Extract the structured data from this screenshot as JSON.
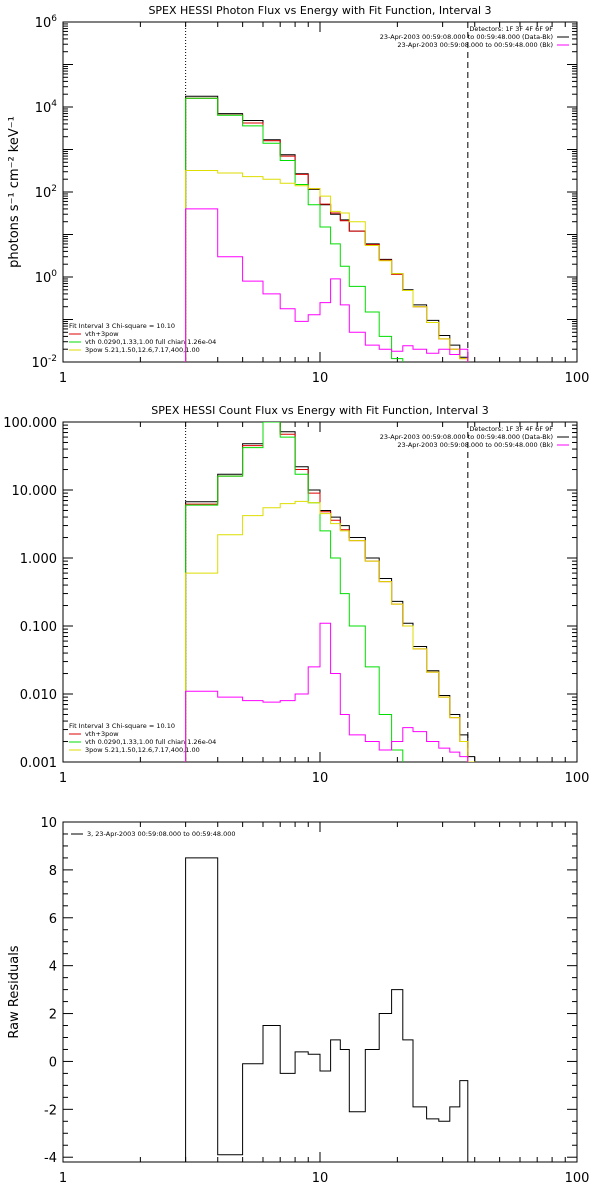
{
  "chart_data": [
    {
      "type": "line",
      "title": "SPEX HESSI Photon Flux vs Energy with Fit Function, Interval 3",
      "xlabel": "",
      "ylabel": "photons s⁻¹ cm⁻² keV⁻¹",
      "xscale": "log",
      "yscale": "log",
      "xlim": [
        1,
        100
      ],
      "ylim": [
        0.01,
        1000000
      ],
      "x_ticks": [
        {
          "v": 1,
          "label": "1"
        },
        {
          "v": 10,
          "label": "10"
        },
        {
          "v": 100,
          "label": "100"
        }
      ],
      "y_ticks": [
        {
          "v": 0.01,
          "base": "10",
          "exp": "-2"
        },
        {
          "v": 1,
          "base": "10",
          "exp": "0"
        },
        {
          "v": 100,
          "base": "10",
          "exp": "2"
        },
        {
          "v": 10000,
          "base": "10",
          "exp": "4"
        },
        {
          "v": 1000000,
          "base": "10",
          "exp": "6"
        }
      ],
      "vlines": [
        {
          "x": 3.0,
          "style": "dotted"
        },
        {
          "x": 37.6,
          "style": "dashed"
        }
      ],
      "info_lines": [
        "Detectors: 1F 3F 4F 6F 9F",
        "23-Apr-2003 00:59:08.000 to 00:59:48.000 (Data-Bk)",
        "23-Apr-2003 00:59:08.000 to 00:59:48.000 (Bk)"
      ],
      "info_swatches": [
        "",
        "#000000",
        "#ff00ff"
      ],
      "fit_lines": [
        "Fit Interval 3   Chi-square = 10.10",
        "vth+3pow",
        "vth 0.0290,1.33,1.00  full chian 1.26e-04",
        "3pow 5.21,1.50,12.6,7.17,400,1.00"
      ],
      "fit_swatches": [
        "",
        "#dd0000",
        "#00dd00",
        "#dddd00"
      ],
      "edges": [
        3.0,
        4.0,
        5.0,
        6.0,
        7.0,
        8.0,
        9.0,
        10.0,
        11.0,
        12.0,
        13.0,
        15.0,
        17.0,
        19.0,
        21.0,
        23.0,
        26.0,
        29.0,
        32.0,
        35.0,
        37.6,
        40.0,
        43.0,
        46.0
      ],
      "series": [
        {
          "color": "#000000",
          "values": [
            18000,
            7000,
            4800,
            1700,
            750,
            270,
            115,
            50,
            30,
            22,
            12,
            6.0,
            2.6,
            1.2,
            0.5,
            0.22,
            0.095,
            0.042,
            0.025,
            0.013,
            0.009,
            null,
            null
          ]
        },
        {
          "color": "#dd0000",
          "values": [
            16000,
            6500,
            4200,
            1600,
            700,
            260,
            120,
            52,
            32,
            21,
            12,
            5.8,
            2.5,
            1.15,
            0.48,
            0.2,
            0.085,
            0.035,
            0.02,
            0.012,
            0.008,
            0.0055,
            null
          ]
        },
        {
          "color": "#00dd00",
          "values": [
            16000,
            6400,
            3600,
            1400,
            550,
            150,
            50,
            15,
            6,
            1.8,
            0.6,
            0.15,
            0.04,
            0.012,
            null,
            null,
            null,
            null,
            null,
            null,
            null,
            null,
            null
          ]
        },
        {
          "color": "#dddd00",
          "values": [
            320,
            280,
            230,
            200,
            160,
            140,
            120,
            80,
            35,
            32,
            20,
            5.5,
            2.4,
            1.2,
            0.48,
            0.2,
            0.085,
            0.035,
            0.02,
            0.012,
            0.008,
            0.0055,
            null
          ]
        },
        {
          "color": "#ff00ff",
          "values": [
            40,
            3.0,
            0.8,
            0.4,
            0.18,
            0.09,
            0.13,
            0.25,
            0.9,
            0.22,
            0.05,
            0.025,
            0.02,
            0.018,
            0.024,
            0.02,
            0.016,
            0.02,
            0.015,
            0.02,
            null,
            null,
            null
          ]
        }
      ]
    },
    {
      "type": "line",
      "title": "SPEX HESSI Count Flux vs Energy with Fit Function, Interval 3",
      "xlabel": "",
      "ylabel": "",
      "xscale": "log",
      "yscale": "log",
      "xlim": [
        1,
        100
      ],
      "ylim": [
        0.001,
        100
      ],
      "x_ticks": [
        {
          "v": 1,
          "label": "1"
        },
        {
          "v": 10,
          "label": "10"
        },
        {
          "v": 100,
          "label": "100"
        }
      ],
      "y_ticks": [
        {
          "v": 0.001,
          "label": "0.001"
        },
        {
          "v": 0.01,
          "label": "0.010"
        },
        {
          "v": 0.1,
          "label": "0.100"
        },
        {
          "v": 1,
          "label": "1.000"
        },
        {
          "v": 10,
          "label": "10.000"
        },
        {
          "v": 100,
          "label": "100.000"
        }
      ],
      "vlines": [
        {
          "x": 3.0,
          "style": "dotted"
        },
        {
          "x": 37.6,
          "style": "dashed"
        }
      ],
      "info_lines": [
        "Detectors: 1F 3F 4F 6F 9F",
        "23-Apr-2003 00:59:08.000 to 00:59:48.000 (Data-Bk)",
        "23-Apr-2003 00:59:08.000 to 00:59:48.000 (Bk)"
      ],
      "info_swatches": [
        "",
        "#000000",
        "#ff00ff"
      ],
      "fit_lines": [
        "Fit Interval 3   Chi-square = 10.10",
        "vth+3pow",
        "vth 0.0290,1.33,1.00  full chian 1.26e-04",
        "3pow 5.21,1.50,12.6,7.17,400,1.00"
      ],
      "fit_swatches": [
        "",
        "#dd0000",
        "#00dd00",
        "#dddd00"
      ],
      "edges": [
        3.0,
        4.0,
        5.0,
        6.0,
        7.0,
        8.0,
        9.0,
        10.0,
        11.0,
        12.0,
        13.0,
        15.0,
        17.0,
        19.0,
        21.0,
        23.0,
        26.0,
        29.0,
        32.0,
        35.0,
        37.6,
        40.0,
        43.0,
        46.0
      ],
      "series": [
        {
          "color": "#000000",
          "values": [
            6.7,
            17,
            48,
            110,
            72,
            22,
            10,
            5.0,
            4.0,
            3.0,
            2.0,
            1.0,
            0.5,
            0.23,
            0.11,
            0.05,
            0.022,
            0.0095,
            0.005,
            0.0025,
            0.0012,
            null,
            null
          ]
        },
        {
          "color": "#dd0000",
          "values": [
            6.2,
            16,
            45,
            103,
            66,
            20,
            9,
            4.8,
            3.6,
            2.6,
            1.8,
            0.9,
            0.45,
            0.21,
            0.1,
            0.046,
            0.021,
            0.009,
            0.0045,
            0.002,
            0.001,
            null,
            null
          ]
        },
        {
          "color": "#00dd00",
          "values": [
            6.0,
            16,
            42,
            100,
            60,
            17,
            6.5,
            2.5,
            1.0,
            0.3,
            0.1,
            0.025,
            0.005,
            0.0015,
            null,
            null,
            null,
            null,
            null,
            null,
            null,
            null,
            null
          ]
        },
        {
          "color": "#dddd00",
          "values": [
            0.6,
            2.2,
            4.2,
            5.5,
            6.3,
            6.8,
            6.5,
            4.5,
            3.2,
            2.5,
            1.8,
            0.9,
            0.45,
            0.21,
            0.1,
            0.046,
            0.021,
            0.009,
            0.0045,
            0.002,
            0.001,
            0.0006,
            null
          ]
        },
        {
          "color": "#ff00ff",
          "values": [
            0.011,
            0.009,
            0.008,
            0.0076,
            0.008,
            0.01,
            0.025,
            0.11,
            0.02,
            0.005,
            0.0025,
            0.002,
            0.0015,
            0.002,
            0.0032,
            0.0028,
            0.002,
            0.0016,
            0.0014,
            0.0012,
            null,
            null,
            null
          ]
        }
      ]
    },
    {
      "type": "line",
      "title": "",
      "xlabel": "",
      "ylabel": "Raw Residuals",
      "xscale": "log",
      "yscale": "linear",
      "xlim": [
        1,
        100
      ],
      "ylim": [
        -4.2,
        10
      ],
      "x_ticks": [
        {
          "v": 1,
          "label": "1"
        },
        {
          "v": 10,
          "label": "10"
        },
        {
          "v": 100,
          "label": "100"
        }
      ],
      "y_ticks": [
        {
          "v": -4,
          "label": "-4"
        },
        {
          "v": -2,
          "label": "-2"
        },
        {
          "v": 0,
          "label": "0"
        },
        {
          "v": 2,
          "label": "2"
        },
        {
          "v": 4,
          "label": "4"
        },
        {
          "v": 6,
          "label": "6"
        },
        {
          "v": 8,
          "label": "8"
        },
        {
          "v": 10,
          "label": "10"
        }
      ],
      "legend": "3, 23-Apr-2003 00:59:08.000 to 00:59:48.000",
      "edges": [
        3.0,
        4.0,
        5.0,
        6.0,
        7.0,
        8.0,
        9.0,
        10.0,
        11.0,
        12.0,
        13.0,
        15.0,
        17.0,
        19.0,
        21.0,
        23.0,
        26.0,
        29.0,
        32.0,
        35.0,
        37.6
      ],
      "series": [
        {
          "color": "#000000",
          "values": [
            8.5,
            -3.9,
            -0.1,
            1.5,
            -0.5,
            0.4,
            0.3,
            -0.4,
            0.9,
            0.5,
            -2.1,
            0.5,
            2.0,
            3.0,
            0.9,
            -1.9,
            -2.4,
            -2.5,
            -1.9,
            -0.8
          ]
        }
      ],
      "baseline": -4.2
    }
  ]
}
